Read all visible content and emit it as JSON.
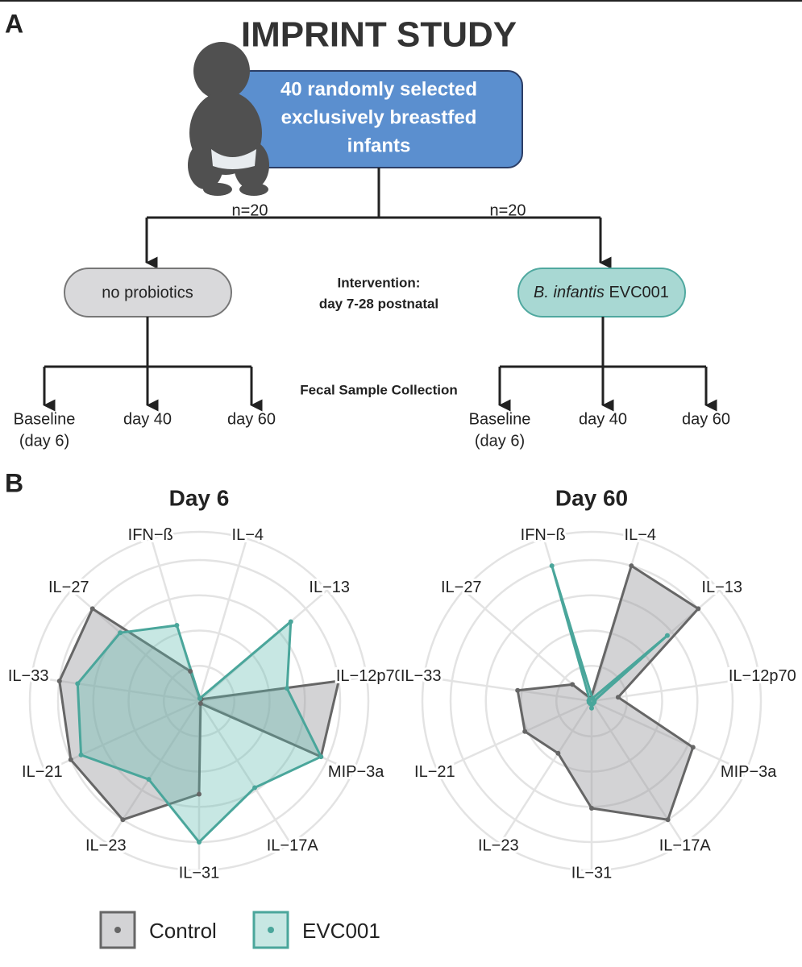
{
  "panel_labels": [
    "A",
    "B"
  ],
  "diagram": {
    "title": "IMPRINT STUDY",
    "cohort": [
      "40 randomly selected",
      "exclusively breastfed",
      "infants"
    ],
    "arms": [
      {
        "n": "n=20",
        "label": "no probiotics",
        "samples": [
          [
            "Baseline",
            "(day 6)"
          ],
          [
            "day 40"
          ],
          [
            "day 60"
          ]
        ]
      },
      {
        "n": "n=20",
        "label_italic": "B. infantis",
        "label": "EVC001",
        "samples": [
          [
            "Baseline",
            "(day 6)"
          ],
          [
            "day 40"
          ],
          [
            "day 60"
          ]
        ]
      }
    ],
    "intervention": [
      "Intervention:",
      "day 7-28 postnatal"
    ],
    "collection": "Fecal Sample Collection"
  },
  "chart_data": [
    {
      "type": "radar",
      "title": "Day 6",
      "categories": [
        "IFN−ß",
        "IL−4",
        "IL−13",
        "IL−12p70",
        "MIP−3a",
        "IL−17A",
        "IL−31",
        "IL−23",
        "IL−21",
        "IL−33",
        "IL−27"
      ],
      "series": [
        {
          "name": "Control",
          "color": "#666666",
          "values": [
            0.22,
            0.02,
            0.02,
            1.0,
            0.95,
            0.02,
            0.66,
            1.0,
            1.0,
            1.0,
            1.0
          ]
        },
        {
          "name": "EVC001",
          "color": "#4aa69b",
          "values": [
            0.56,
            0.02,
            0.86,
            0.63,
            0.95,
            0.73,
            1.0,
            0.66,
            0.92,
            0.87,
            0.74
          ]
        }
      ],
      "ylim": [
        0,
        1.2
      ],
      "yticks": [
        0.25,
        0.5,
        0.75,
        1,
        1.2
      ],
      "grid": true
    },
    {
      "type": "radar",
      "title": "Day 60",
      "categories": [
        "IFN−ß",
        "IL−4",
        "IL−13",
        "IL−12p70",
        "MIP−3a",
        "IL−17A",
        "IL−31",
        "IL−23",
        "IL−21",
        "IL−33",
        "IL−27"
      ],
      "series": [
        {
          "name": "Control",
          "color": "#666666",
          "values": [
            0.02,
            1.0,
            1.0,
            0.19,
            0.79,
            1.0,
            0.76,
            0.44,
            0.52,
            0.53,
            0.18
          ]
        },
        {
          "name": "EVC001",
          "color": "#4aa69b",
          "values": [
            1.0,
            0.02,
            0.71,
            0.02,
            0.02,
            0.02,
            0.05,
            0.02,
            0.02,
            0.02,
            0.02
          ]
        }
      ],
      "ylim": [
        0,
        1.2
      ],
      "yticks": [
        0.25,
        0.5,
        0.75,
        1,
        1.2
      ],
      "grid": true
    }
  ]
}
